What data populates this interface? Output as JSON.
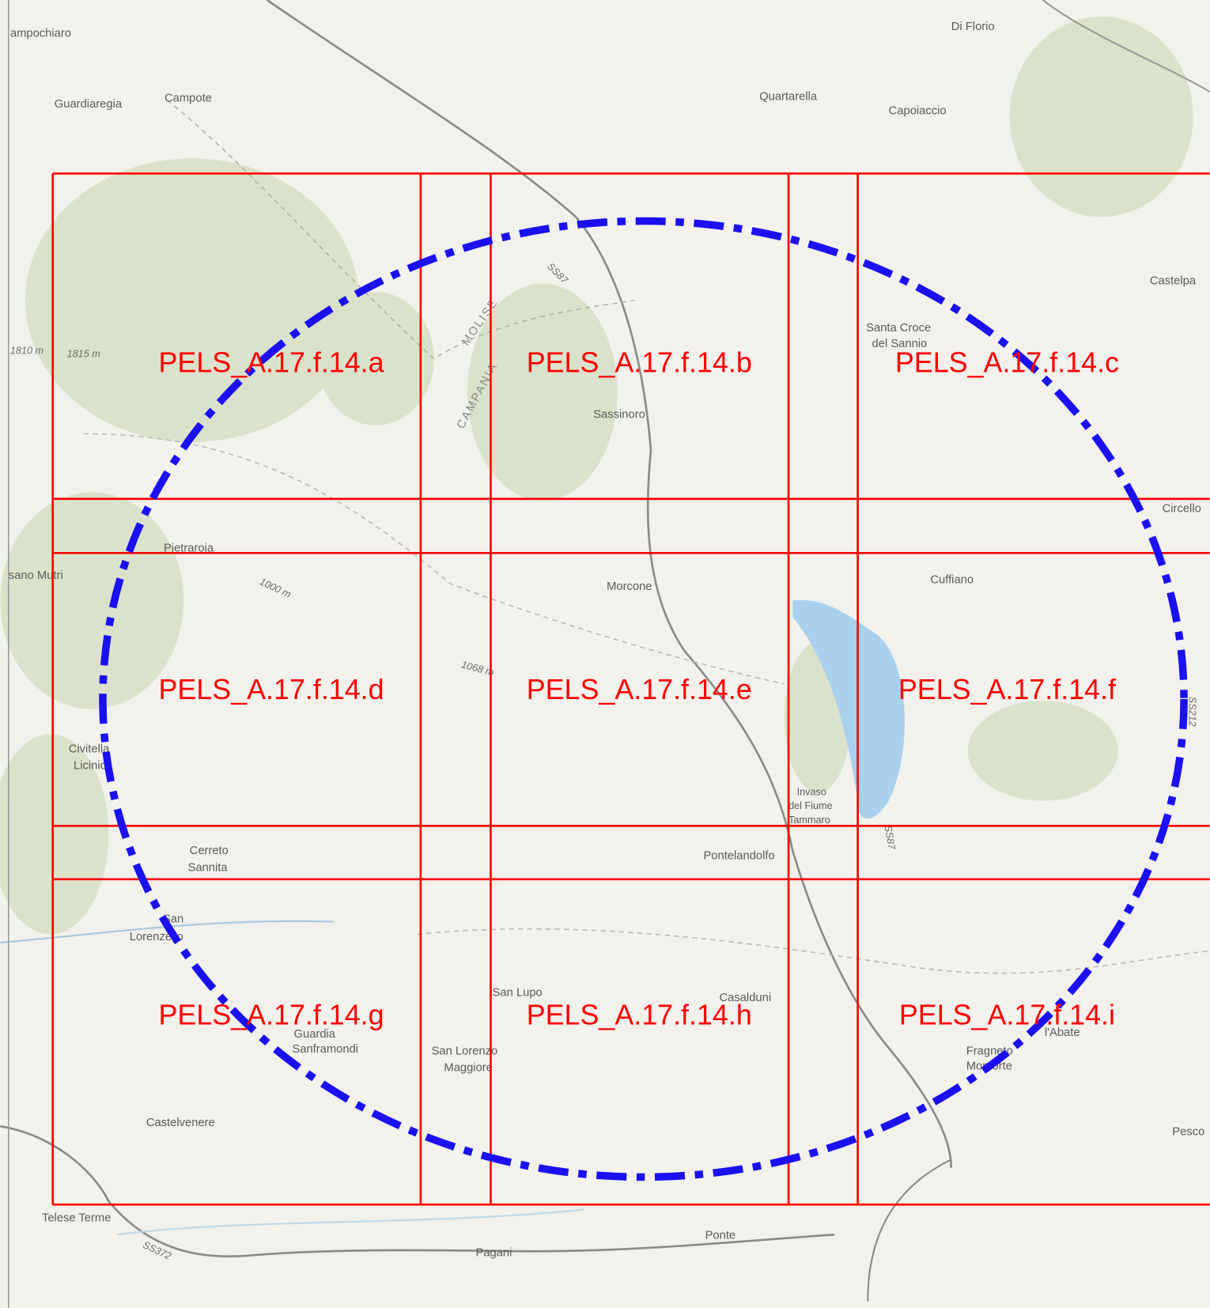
{
  "map": {
    "tiles": [
      "PELS_A.17.f.14.a",
      "PELS_A.17.f.14.b",
      "PELS_A.17.f.14.c",
      "PELS_A.17.f.14.d",
      "PELS_A.17.f.14.e",
      "PELS_A.17.f.14.f",
      "PELS_A.17.f.14.g",
      "PELS_A.17.f.14.h",
      "PELS_A.17.f.14.i"
    ],
    "places": [
      "ampochiaro",
      "Guardiaregia",
      "Campote",
      "Di Florio",
      "Quartarella",
      "Capoiaccio",
      "Castelpa",
      "Santa Croce",
      "del Sannio",
      "Sassinoro",
      "Circello",
      "Pietraroja",
      "sano Mutri",
      "Morcone",
      "Cuffiano",
      "Civitella",
      "Licinio",
      "Cerreto",
      "Sannita",
      "Pontelandolfo",
      "Invaso",
      "del Fiume",
      "Tammaro",
      "San",
      "Lorenzello",
      "San Lupo",
      "Casalduni",
      "Guardia",
      "Sanframondi",
      "San Lorenzo",
      "Maggiore",
      "Fragneto",
      "Monforte",
      "l'Abate",
      "Castelvenere",
      "Pesco",
      "Telese Terme",
      "Ponte",
      "Pagani"
    ],
    "boundaries": [
      "MOLISE",
      "CAMPANIA"
    ],
    "elevations": [
      "1810 m",
      "1815 m",
      "1000 m",
      "1068 m"
    ],
    "roads": [
      "SS87",
      "SS212",
      "SS372",
      "SS87"
    ]
  }
}
